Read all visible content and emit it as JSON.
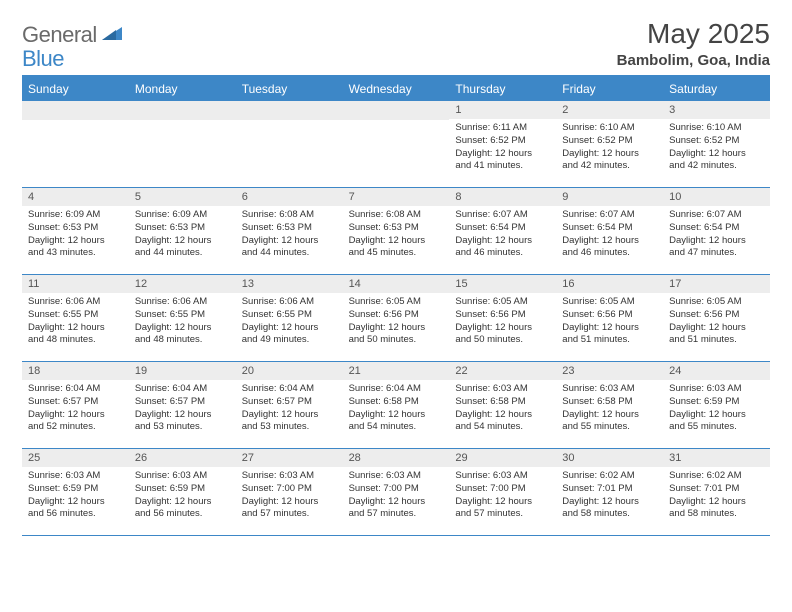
{
  "logo": {
    "text1": "General",
    "text2": "Blue"
  },
  "title": "May 2025",
  "location": "Bambolim, Goa, India",
  "header_color": "#3d87c7",
  "weekdays": [
    "Sunday",
    "Monday",
    "Tuesday",
    "Wednesday",
    "Thursday",
    "Friday",
    "Saturday"
  ],
  "weeks": [
    [
      {
        "day": "",
        "sunrise": "",
        "sunset": "",
        "daylight": ""
      },
      {
        "day": "",
        "sunrise": "",
        "sunset": "",
        "daylight": ""
      },
      {
        "day": "",
        "sunrise": "",
        "sunset": "",
        "daylight": ""
      },
      {
        "day": "",
        "sunrise": "",
        "sunset": "",
        "daylight": ""
      },
      {
        "day": "1",
        "sunrise": "Sunrise: 6:11 AM",
        "sunset": "Sunset: 6:52 PM",
        "daylight": "Daylight: 12 hours and 41 minutes."
      },
      {
        "day": "2",
        "sunrise": "Sunrise: 6:10 AM",
        "sunset": "Sunset: 6:52 PM",
        "daylight": "Daylight: 12 hours and 42 minutes."
      },
      {
        "day": "3",
        "sunrise": "Sunrise: 6:10 AM",
        "sunset": "Sunset: 6:52 PM",
        "daylight": "Daylight: 12 hours and 42 minutes."
      }
    ],
    [
      {
        "day": "4",
        "sunrise": "Sunrise: 6:09 AM",
        "sunset": "Sunset: 6:53 PM",
        "daylight": "Daylight: 12 hours and 43 minutes."
      },
      {
        "day": "5",
        "sunrise": "Sunrise: 6:09 AM",
        "sunset": "Sunset: 6:53 PM",
        "daylight": "Daylight: 12 hours and 44 minutes."
      },
      {
        "day": "6",
        "sunrise": "Sunrise: 6:08 AM",
        "sunset": "Sunset: 6:53 PM",
        "daylight": "Daylight: 12 hours and 44 minutes."
      },
      {
        "day": "7",
        "sunrise": "Sunrise: 6:08 AM",
        "sunset": "Sunset: 6:53 PM",
        "daylight": "Daylight: 12 hours and 45 minutes."
      },
      {
        "day": "8",
        "sunrise": "Sunrise: 6:07 AM",
        "sunset": "Sunset: 6:54 PM",
        "daylight": "Daylight: 12 hours and 46 minutes."
      },
      {
        "day": "9",
        "sunrise": "Sunrise: 6:07 AM",
        "sunset": "Sunset: 6:54 PM",
        "daylight": "Daylight: 12 hours and 46 minutes."
      },
      {
        "day": "10",
        "sunrise": "Sunrise: 6:07 AM",
        "sunset": "Sunset: 6:54 PM",
        "daylight": "Daylight: 12 hours and 47 minutes."
      }
    ],
    [
      {
        "day": "11",
        "sunrise": "Sunrise: 6:06 AM",
        "sunset": "Sunset: 6:55 PM",
        "daylight": "Daylight: 12 hours and 48 minutes."
      },
      {
        "day": "12",
        "sunrise": "Sunrise: 6:06 AM",
        "sunset": "Sunset: 6:55 PM",
        "daylight": "Daylight: 12 hours and 48 minutes."
      },
      {
        "day": "13",
        "sunrise": "Sunrise: 6:06 AM",
        "sunset": "Sunset: 6:55 PM",
        "daylight": "Daylight: 12 hours and 49 minutes."
      },
      {
        "day": "14",
        "sunrise": "Sunrise: 6:05 AM",
        "sunset": "Sunset: 6:56 PM",
        "daylight": "Daylight: 12 hours and 50 minutes."
      },
      {
        "day": "15",
        "sunrise": "Sunrise: 6:05 AM",
        "sunset": "Sunset: 6:56 PM",
        "daylight": "Daylight: 12 hours and 50 minutes."
      },
      {
        "day": "16",
        "sunrise": "Sunrise: 6:05 AM",
        "sunset": "Sunset: 6:56 PM",
        "daylight": "Daylight: 12 hours and 51 minutes."
      },
      {
        "day": "17",
        "sunrise": "Sunrise: 6:05 AM",
        "sunset": "Sunset: 6:56 PM",
        "daylight": "Daylight: 12 hours and 51 minutes."
      }
    ],
    [
      {
        "day": "18",
        "sunrise": "Sunrise: 6:04 AM",
        "sunset": "Sunset: 6:57 PM",
        "daylight": "Daylight: 12 hours and 52 minutes."
      },
      {
        "day": "19",
        "sunrise": "Sunrise: 6:04 AM",
        "sunset": "Sunset: 6:57 PM",
        "daylight": "Daylight: 12 hours and 53 minutes."
      },
      {
        "day": "20",
        "sunrise": "Sunrise: 6:04 AM",
        "sunset": "Sunset: 6:57 PM",
        "daylight": "Daylight: 12 hours and 53 minutes."
      },
      {
        "day": "21",
        "sunrise": "Sunrise: 6:04 AM",
        "sunset": "Sunset: 6:58 PM",
        "daylight": "Daylight: 12 hours and 54 minutes."
      },
      {
        "day": "22",
        "sunrise": "Sunrise: 6:03 AM",
        "sunset": "Sunset: 6:58 PM",
        "daylight": "Daylight: 12 hours and 54 minutes."
      },
      {
        "day": "23",
        "sunrise": "Sunrise: 6:03 AM",
        "sunset": "Sunset: 6:58 PM",
        "daylight": "Daylight: 12 hours and 55 minutes."
      },
      {
        "day": "24",
        "sunrise": "Sunrise: 6:03 AM",
        "sunset": "Sunset: 6:59 PM",
        "daylight": "Daylight: 12 hours and 55 minutes."
      }
    ],
    [
      {
        "day": "25",
        "sunrise": "Sunrise: 6:03 AM",
        "sunset": "Sunset: 6:59 PM",
        "daylight": "Daylight: 12 hours and 56 minutes."
      },
      {
        "day": "26",
        "sunrise": "Sunrise: 6:03 AM",
        "sunset": "Sunset: 6:59 PM",
        "daylight": "Daylight: 12 hours and 56 minutes."
      },
      {
        "day": "27",
        "sunrise": "Sunrise: 6:03 AM",
        "sunset": "Sunset: 7:00 PM",
        "daylight": "Daylight: 12 hours and 57 minutes."
      },
      {
        "day": "28",
        "sunrise": "Sunrise: 6:03 AM",
        "sunset": "Sunset: 7:00 PM",
        "daylight": "Daylight: 12 hours and 57 minutes."
      },
      {
        "day": "29",
        "sunrise": "Sunrise: 6:03 AM",
        "sunset": "Sunset: 7:00 PM",
        "daylight": "Daylight: 12 hours and 57 minutes."
      },
      {
        "day": "30",
        "sunrise": "Sunrise: 6:02 AM",
        "sunset": "Sunset: 7:01 PM",
        "daylight": "Daylight: 12 hours and 58 minutes."
      },
      {
        "day": "31",
        "sunrise": "Sunrise: 6:02 AM",
        "sunset": "Sunset: 7:01 PM",
        "daylight": "Daylight: 12 hours and 58 minutes."
      }
    ]
  ]
}
